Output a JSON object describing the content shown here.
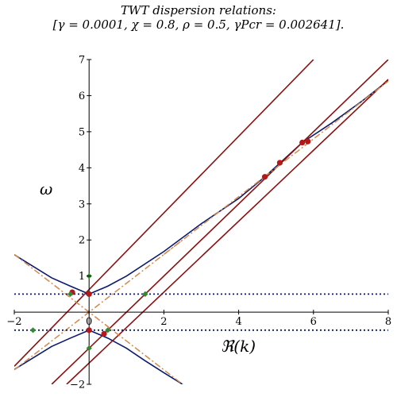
{
  "chart_data": {
    "type": "line",
    "title": "TWT dispersion relations:",
    "subtitle": "[γ = 0.0001, χ = 0.8, ρ = 0.5, γPcr = 0.002641].",
    "params": {
      "gamma": 0.0001,
      "chi": 0.8,
      "rho": 0.5,
      "gamma_Pcr": 0.002641
    },
    "xlabel": "ℜ(k)",
    "ylabel": "ω",
    "xlim": [
      -2,
      8
    ],
    "ylim": [
      -2,
      7
    ],
    "x_ticks": [
      "−2",
      "0",
      "2",
      "4",
      "6",
      "8"
    ],
    "y_ticks": [
      "−2",
      "1",
      "2",
      "3",
      "4",
      "5",
      "6",
      "7"
    ],
    "grid": false,
    "colors": {
      "hyperbola": "#0b1a6e",
      "beam_lines": "#8b1010",
      "asymptotes": "#d4894a",
      "reference": "#0b1a6e",
      "points_red": "#b51818",
      "points_green": "#2e8b2e"
    },
    "series": [
      {
        "style": "solid",
        "color": "#0b1a6e",
        "points": [
          [
            -2.0,
            1.59
          ],
          [
            -1.0,
            0.95
          ],
          [
            -0.5,
            0.72
          ],
          [
            0.0,
            0.5
          ],
          [
            0.5,
            0.72
          ],
          [
            1.0,
            1.0
          ],
          [
            2.0,
            1.68
          ],
          [
            3.0,
            2.45
          ],
          [
            4.0,
            3.15
          ],
          [
            4.7,
            3.75
          ],
          [
            5.1,
            4.13
          ],
          [
            5.7,
            4.7
          ],
          [
            6.5,
            5.25
          ],
          [
            7.3,
            5.85
          ],
          [
            8.0,
            6.42
          ]
        ]
      },
      {
        "style": "solid",
        "color": "#0b1a6e",
        "points": [
          [
            -2.0,
            -1.59
          ],
          [
            -1.0,
            -0.95
          ],
          [
            -0.5,
            -0.72
          ],
          [
            0.0,
            -0.5
          ],
          [
            0.5,
            -0.72
          ],
          [
            1.0,
            -1.0
          ],
          [
            1.5,
            -1.35
          ],
          [
            2.0,
            -1.68
          ],
          [
            2.5,
            -2.0
          ]
        ]
      },
      {
        "style": "solid",
        "color": "#8b1010",
        "points": [
          [
            -2.0,
            -1.5
          ],
          [
            6.0,
            7.0
          ]
        ]
      },
      {
        "style": "solid",
        "color": "#8b1010",
        "points": [
          [
            -1.0,
            -2.0
          ],
          [
            8.0,
            7.0
          ]
        ]
      },
      {
        "style": "solid",
        "color": "#8b1010",
        "points": [
          [
            -0.6,
            -2.0
          ],
          [
            8.0,
            6.45
          ]
        ]
      },
      {
        "style": "dashdot",
        "color": "#d4894a",
        "points": [
          [
            -2.0,
            1.6
          ],
          [
            2.5,
            -2.0
          ]
        ]
      },
      {
        "style": "dashdot",
        "color": "#d4894a",
        "points": [
          [
            -2.0,
            -1.6
          ],
          [
            2.5,
            2.0
          ]
        ]
      },
      {
        "style": "dashdot",
        "color": "#d4894a",
        "points": [
          [
            2.0,
            1.6
          ],
          [
            8.0,
            6.4
          ]
        ]
      },
      {
        "style": "dotted",
        "color": "#0b1a6e",
        "points": [
          [
            -2.0,
            0.5
          ],
          [
            8.0,
            0.5
          ]
        ]
      },
      {
        "style": "dotted",
        "color": "#0b1a6e",
        "points": [
          [
            -2.0,
            -0.5
          ],
          [
            8.0,
            -0.5
          ]
        ]
      }
    ],
    "points_red": [
      [
        -0.45,
        0.55
      ],
      [
        0.0,
        0.5
      ],
      [
        0.0,
        -0.5
      ],
      [
        0.4,
        -0.6
      ],
      [
        4.7,
        3.75
      ],
      [
        5.1,
        4.14
      ],
      [
        5.7,
        4.7
      ],
      [
        5.85,
        4.73
      ]
    ],
    "points_green": [
      [
        -0.5,
        0.5
      ],
      [
        0.0,
        1.0
      ],
      [
        0.0,
        -1.0
      ],
      [
        1.5,
        0.5
      ],
      [
        -1.5,
        -0.5
      ],
      [
        0.5,
        -0.5
      ]
    ]
  }
}
